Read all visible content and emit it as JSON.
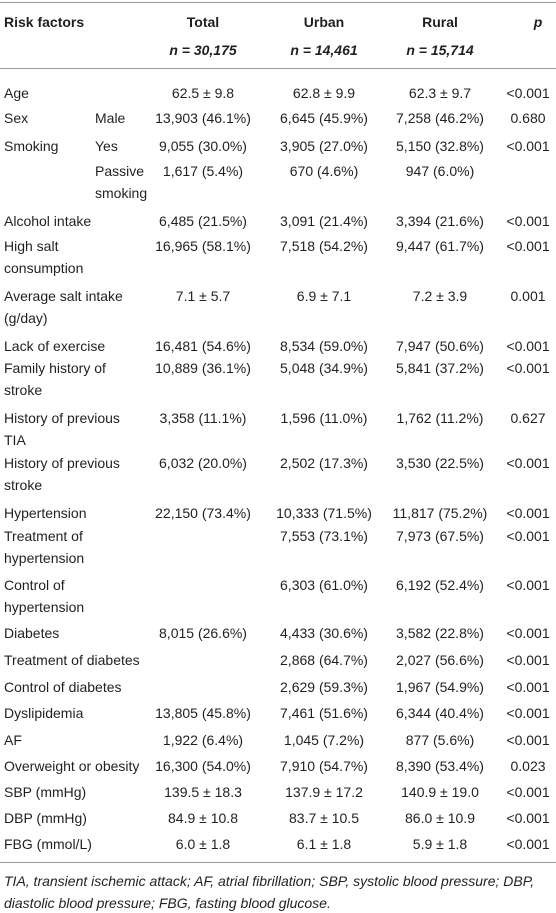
{
  "table": {
    "header": {
      "labels": [
        "Risk factors",
        "Total",
        "Urban",
        "Rural",
        "p"
      ],
      "counts": [
        "n = 30,175",
        "n = 14,461",
        "n = 15,714"
      ]
    },
    "rows": [
      [
        "Age",
        null,
        "62.5 ± 9.8",
        "62.8 ± 9.9",
        "62.3 ± 9.7",
        "<0.001"
      ],
      [
        "Sex",
        "Male",
        "13,903 (46.1%)",
        "6,645 (45.9%)",
        "7,258 (46.2%)",
        "0.680"
      ],
      [
        "Smoking",
        "Yes",
        "9,055 (30.0%)",
        "3,905 (27.0%)",
        "5,150 (32.8%)",
        "<0.001"
      ],
      [
        null,
        [
          "Passive",
          "smoking"
        ],
        "1,617 (5.4%)",
        "670 (4.6%)",
        "947 (6.0%)",
        null
      ],
      [
        "Alcohol intake",
        null,
        "6,485 (21.5%)",
        "3,091 (21.4%)",
        "3,394 (21.6%)",
        "<0.001"
      ],
      [
        [
          "High salt",
          "consumption"
        ],
        null,
        "16,965 (58.1%)",
        "7,518 (54.2%)",
        "9,447 (61.7%)",
        "<0.001"
      ],
      [
        [
          "Average salt intake",
          "(g/day)"
        ],
        null,
        "7.1 ± 5.7",
        "6.9 ± 7.1",
        "7.2 ± 3.9",
        "0.001"
      ],
      [
        "Lack of exercise",
        null,
        "16,481 (54.6%)",
        "8,534 (59.0%)",
        "7,947 (50.6%)",
        "<0.001"
      ],
      [
        [
          "Family history of",
          "stroke"
        ],
        null,
        "10,889 (36.1%)",
        "5,048 (34.9%)",
        "5,841 (37.2%)",
        "<0.001"
      ],
      [
        [
          "History of previous",
          "TIA"
        ],
        null,
        "3,358 (11.1%)",
        "1,596 (11.0%)",
        "1,762 (11.2%)",
        "0.627"
      ],
      [
        [
          "History of previous",
          "stroke"
        ],
        null,
        "6,032 (20.0%)",
        "2,502 (17.3%)",
        "3,530 (22.5%)",
        "<0.001"
      ],
      [
        "Hypertension",
        null,
        "22,150 (73.4%)",
        "10,333 (71.5%)",
        "11,817 (75.2%)",
        "<0.001"
      ],
      [
        [
          "Treatment of",
          "hypertension"
        ],
        null,
        null,
        "7,553 (73.1%)",
        "7,973 (67.5%)",
        "<0.001"
      ],
      [
        [
          "Control of",
          "hypertension"
        ],
        null,
        null,
        "6,303 (61.0%)",
        "6,192 (52.4%)",
        "<0.001"
      ],
      [
        "Diabetes",
        null,
        "8,015 (26.6%)",
        "4,433 (30.6%)",
        "3,582 (22.8%)",
        "<0.001"
      ],
      [
        "Treatment of diabetes",
        null,
        null,
        "2,868 (64.7%)",
        "2,027 (56.6%)",
        "<0.001"
      ],
      [
        "Control of diabetes",
        null,
        null,
        "2,629 (59.3%)",
        "1,967 (54.9%)",
        "<0.001"
      ],
      [
        "Dyslipidemia",
        null,
        "13,805 (45.8%)",
        "7,461 (51.6%)",
        "6,344 (40.4%)",
        "<0.001"
      ],
      [
        "AF",
        null,
        "1,922 (6.4%)",
        "1,045 (7.2%)",
        "877 (5.6%)",
        "<0.001"
      ],
      [
        "Overweight or obesity",
        null,
        "16,300 (54.0%)",
        "7,910 (54.7%)",
        "8,390 (53.4%)",
        "0.023"
      ],
      [
        "SBP (mmHg)",
        null,
        "139.5 ± 18.3",
        "137.9 ± 17.2",
        "140.9 ± 19.0",
        "<0.001"
      ],
      [
        "DBP (mmHg)",
        null,
        "84.9 ± 10.8",
        "83.7 ± 10.5",
        "86.0 ± 10.9",
        "<0.001"
      ],
      [
        "FBG (mmol/L)",
        null,
        "6.0 ± 1.8",
        "6.1 ± 1.8",
        "5.9 ± 1.8",
        "<0.001"
      ]
    ],
    "footnote": [
      "TIA, transient ischemic attack; AF, atrial fibrillation; SBP, systolic blood pressure; DBP,",
      "diastolic blood pressure; FBG, fasting blood glucose."
    ]
  }
}
